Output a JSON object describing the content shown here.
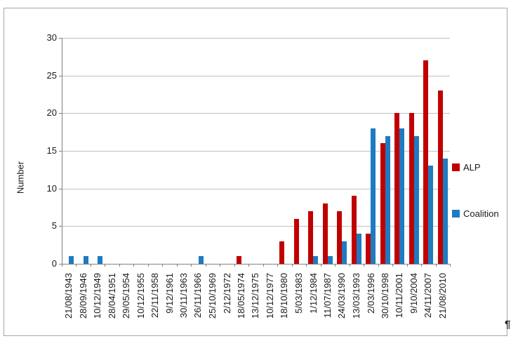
{
  "document": {
    "pilcrow": "¶"
  },
  "chart_data": {
    "type": "bar",
    "bar_layout": "clustered",
    "title": "",
    "xlabel": "",
    "ylabel": "Number",
    "ylim": [
      0,
      30
    ],
    "yticks": [
      0,
      5,
      10,
      15,
      20,
      25,
      30
    ],
    "grid": true,
    "legend_position": "right",
    "categories": [
      "21/08/1943",
      "28/09/1946",
      "10/12/1949",
      "28/04/1951",
      "29/05/1954",
      "10/12/1955",
      "22/11/1958",
      "9/12/1961",
      "30/11/1963",
      "26/11/1966",
      "25/10/1969",
      "2/12/1972",
      "18/05/1974",
      "13/12/1975",
      "10/12/1977",
      "18/10/1980",
      "5/03/1983",
      "1/12/1984",
      "11/07/1987",
      "24/03/1990",
      "13/03/1993",
      "2/03/1996",
      "30/10/1998",
      "10/11/2001",
      "9/10/2004",
      "24/11/2007",
      "21/08/2010"
    ],
    "series": [
      {
        "name": "ALP",
        "color": "#C00000",
        "values": [
          0,
          0,
          0,
          0,
          0,
          0,
          0,
          0,
          0,
          0,
          0,
          0,
          1,
          0,
          0,
          3,
          6,
          7,
          8,
          7,
          9,
          4,
          16,
          20,
          20,
          27,
          23
        ]
      },
      {
        "name": "Coalition",
        "color": "#1F7BC0",
        "values": [
          1,
          1,
          1,
          0,
          0,
          0,
          0,
          0,
          0,
          1,
          0,
          0,
          0,
          0,
          0,
          0,
          0,
          1,
          1,
          3,
          4,
          18,
          17,
          18,
          17,
          13,
          14
        ]
      }
    ]
  }
}
